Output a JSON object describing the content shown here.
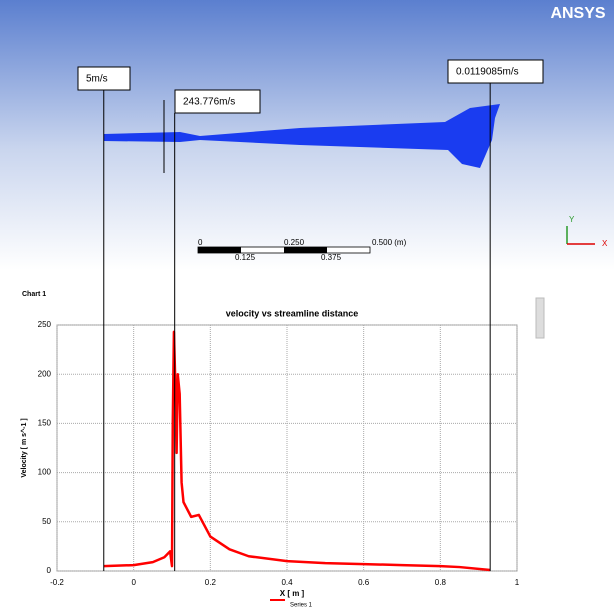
{
  "logo": "ANSYS",
  "scale_bar": {
    "labels": [
      "0",
      "0.250",
      "0.500 (m)"
    ],
    "sublabels": [
      "0.125",
      "0.375"
    ]
  },
  "triad": [
    "Y",
    "X"
  ],
  "chart_data": {
    "type": "line",
    "panel": "Chart 1",
    "title": "velocity vs streamline distance",
    "xlabel": "X [ m ]",
    "ylabel": "Velocity [ m s^-1 ]",
    "x": [
      -0.078,
      0,
      0.05,
      0.08,
      0.095,
      0.1,
      0.102,
      0.105,
      0.108,
      0.112,
      0.115,
      0.12,
      0.125,
      0.13,
      0.15,
      0.17,
      0.2,
      0.25,
      0.3,
      0.4,
      0.5,
      0.6,
      0.7,
      0.8,
      0.85,
      0.93
    ],
    "series": [
      {
        "name": "Series 1",
        "color": "#ff0000",
        "values": [
          5,
          6,
          9,
          14,
          20,
          5,
          150,
          243,
          200,
          120,
          200,
          180,
          90,
          70,
          55,
          57,
          35,
          22,
          15,
          10,
          8,
          7,
          6,
          5,
          4,
          1
        ]
      }
    ],
    "xlim": [
      -0.2,
      1
    ],
    "xticks": [
      -0.2,
      0,
      0.2,
      0.4,
      0.6,
      0.8,
      1
    ],
    "ylim": [
      0,
      250
    ],
    "yticks": [
      0,
      50,
      100,
      150,
      200,
      250
    ],
    "grid": true,
    "annotations": [
      {
        "label": "5m/s",
        "x": -0.078
      },
      {
        "label": "243.776m/s",
        "x": 0.107
      },
      {
        "label": "0.0119085m/s",
        "x": 0.93
      }
    ]
  }
}
